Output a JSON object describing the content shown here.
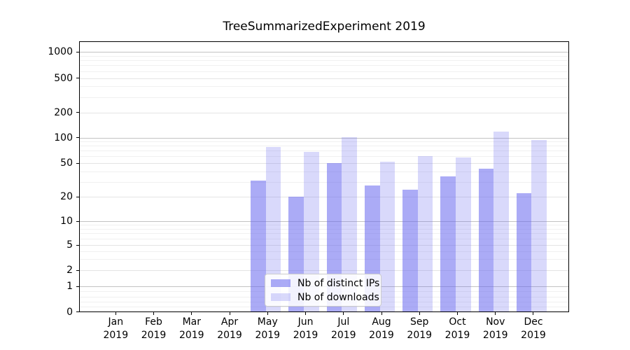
{
  "chart_data": {
    "type": "bar",
    "title": "TreeSummarizedExperiment 2019",
    "categories": [
      "Jan",
      "Feb",
      "Mar",
      "Apr",
      "May",
      "Jun",
      "Jul",
      "Aug",
      "Sep",
      "Oct",
      "Nov",
      "Dec"
    ],
    "x_sublabel": "2019",
    "series": [
      {
        "name": "Nb of distinct IPs",
        "color": "rgba(102,102,238,0.55)",
        "display_color": "#abaaf5",
        "values": [
          0,
          0,
          0,
          0,
          31,
          20,
          50,
          27,
          24,
          35,
          43,
          22
        ]
      },
      {
        "name": "Nb of downloads",
        "color": "rgba(102,102,238,0.25)",
        "display_color": "#d9d9fa",
        "values": [
          0,
          0,
          0,
          0,
          78,
          68,
          101,
          52,
          61,
          58,
          117,
          94
        ]
      }
    ],
    "yticks": [
      0,
      1,
      2,
      5,
      10,
      20,
      50,
      100,
      200,
      500,
      1000
    ],
    "yscale": "symlog",
    "ylim": [
      0,
      1300
    ],
    "grid": "on",
    "legend_position": "lower center",
    "background": "#ffffff"
  }
}
